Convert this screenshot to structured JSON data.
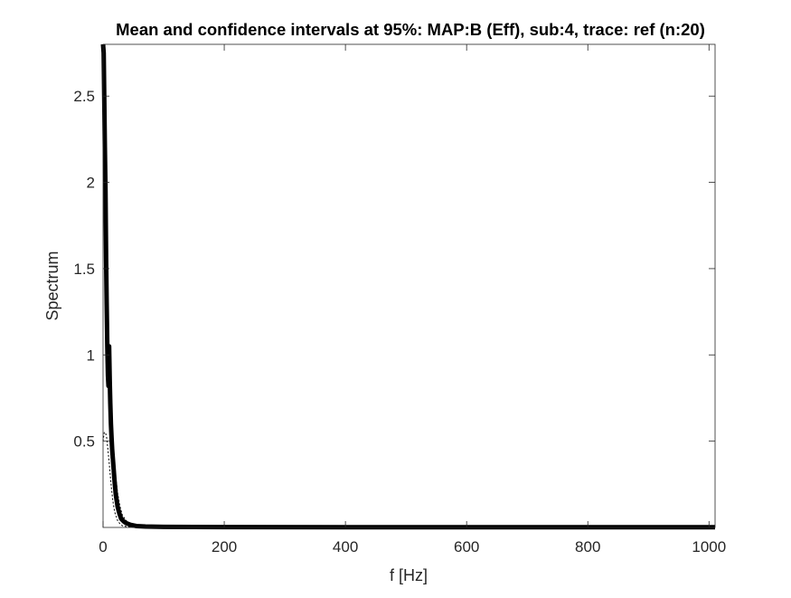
{
  "chart_data": {
    "type": "line",
    "title": "Mean and confidence intervals at 95%: MAP:B (Eff), sub:4, trace: ref (n:20)",
    "xlabel": "f [Hz]",
    "ylabel": "Spectrum",
    "xlim": [
      0,
      1010
    ],
    "ylim": [
      0,
      2.8
    ],
    "xticks": [
      0,
      200,
      400,
      600,
      800,
      1000
    ],
    "yticks": [
      0.5,
      1,
      1.5,
      2,
      2.5
    ],
    "xtick_labels": [
      "0",
      "200",
      "400",
      "600",
      "800",
      "1000"
    ],
    "ytick_labels": [
      "0.5",
      "1",
      "1.5",
      "2",
      "2.5"
    ],
    "grid": false,
    "series": [
      {
        "role": "mean",
        "color": "#000000",
        "x": [
          0,
          1,
          2,
          3,
          4,
          5,
          6,
          7,
          8,
          9,
          10,
          11,
          12,
          13,
          14,
          15,
          17,
          19,
          21,
          24,
          27,
          30,
          34,
          38,
          45,
          55,
          70,
          100,
          200,
          400,
          600,
          800,
          1010
        ],
        "y": [
          2.8,
          2.75,
          2.5,
          2.2,
          1.95,
          1.55,
          1.3,
          1.05,
          0.88,
          0.82,
          1.05,
          0.85,
          0.72,
          0.6,
          0.52,
          0.45,
          0.36,
          0.27,
          0.19,
          0.12,
          0.08,
          0.05,
          0.035,
          0.025,
          0.015,
          0.008,
          0.005,
          0.003,
          0.002,
          0.001,
          0.001,
          0.001,
          0.001
        ]
      },
      {
        "role": "ci_upper",
        "color": "#000000",
        "x": [
          0,
          2,
          4,
          6,
          8,
          10,
          12,
          14,
          16,
          18,
          20,
          24,
          28,
          32,
          38,
          45,
          55,
          70
        ],
        "y": [
          2.85,
          2.7,
          2.2,
          1.6,
          1.2,
          1.0,
          0.8,
          0.65,
          0.52,
          0.42,
          0.32,
          0.2,
          0.12,
          0.07,
          0.04,
          0.02,
          0.01,
          0.005
        ]
      },
      {
        "role": "ci_lower",
        "color": "#000000",
        "x": [
          0,
          2,
          4,
          6,
          8,
          10,
          12,
          14,
          16,
          18,
          20,
          24,
          28,
          32,
          38,
          45,
          55,
          70
        ],
        "y": [
          0.5,
          0.55,
          0.55,
          0.52,
          0.45,
          0.38,
          0.3,
          0.22,
          0.16,
          0.11,
          0.08,
          0.04,
          0.02,
          0.01,
          0.005,
          0.002,
          0.001,
          0.0
        ]
      }
    ]
  }
}
